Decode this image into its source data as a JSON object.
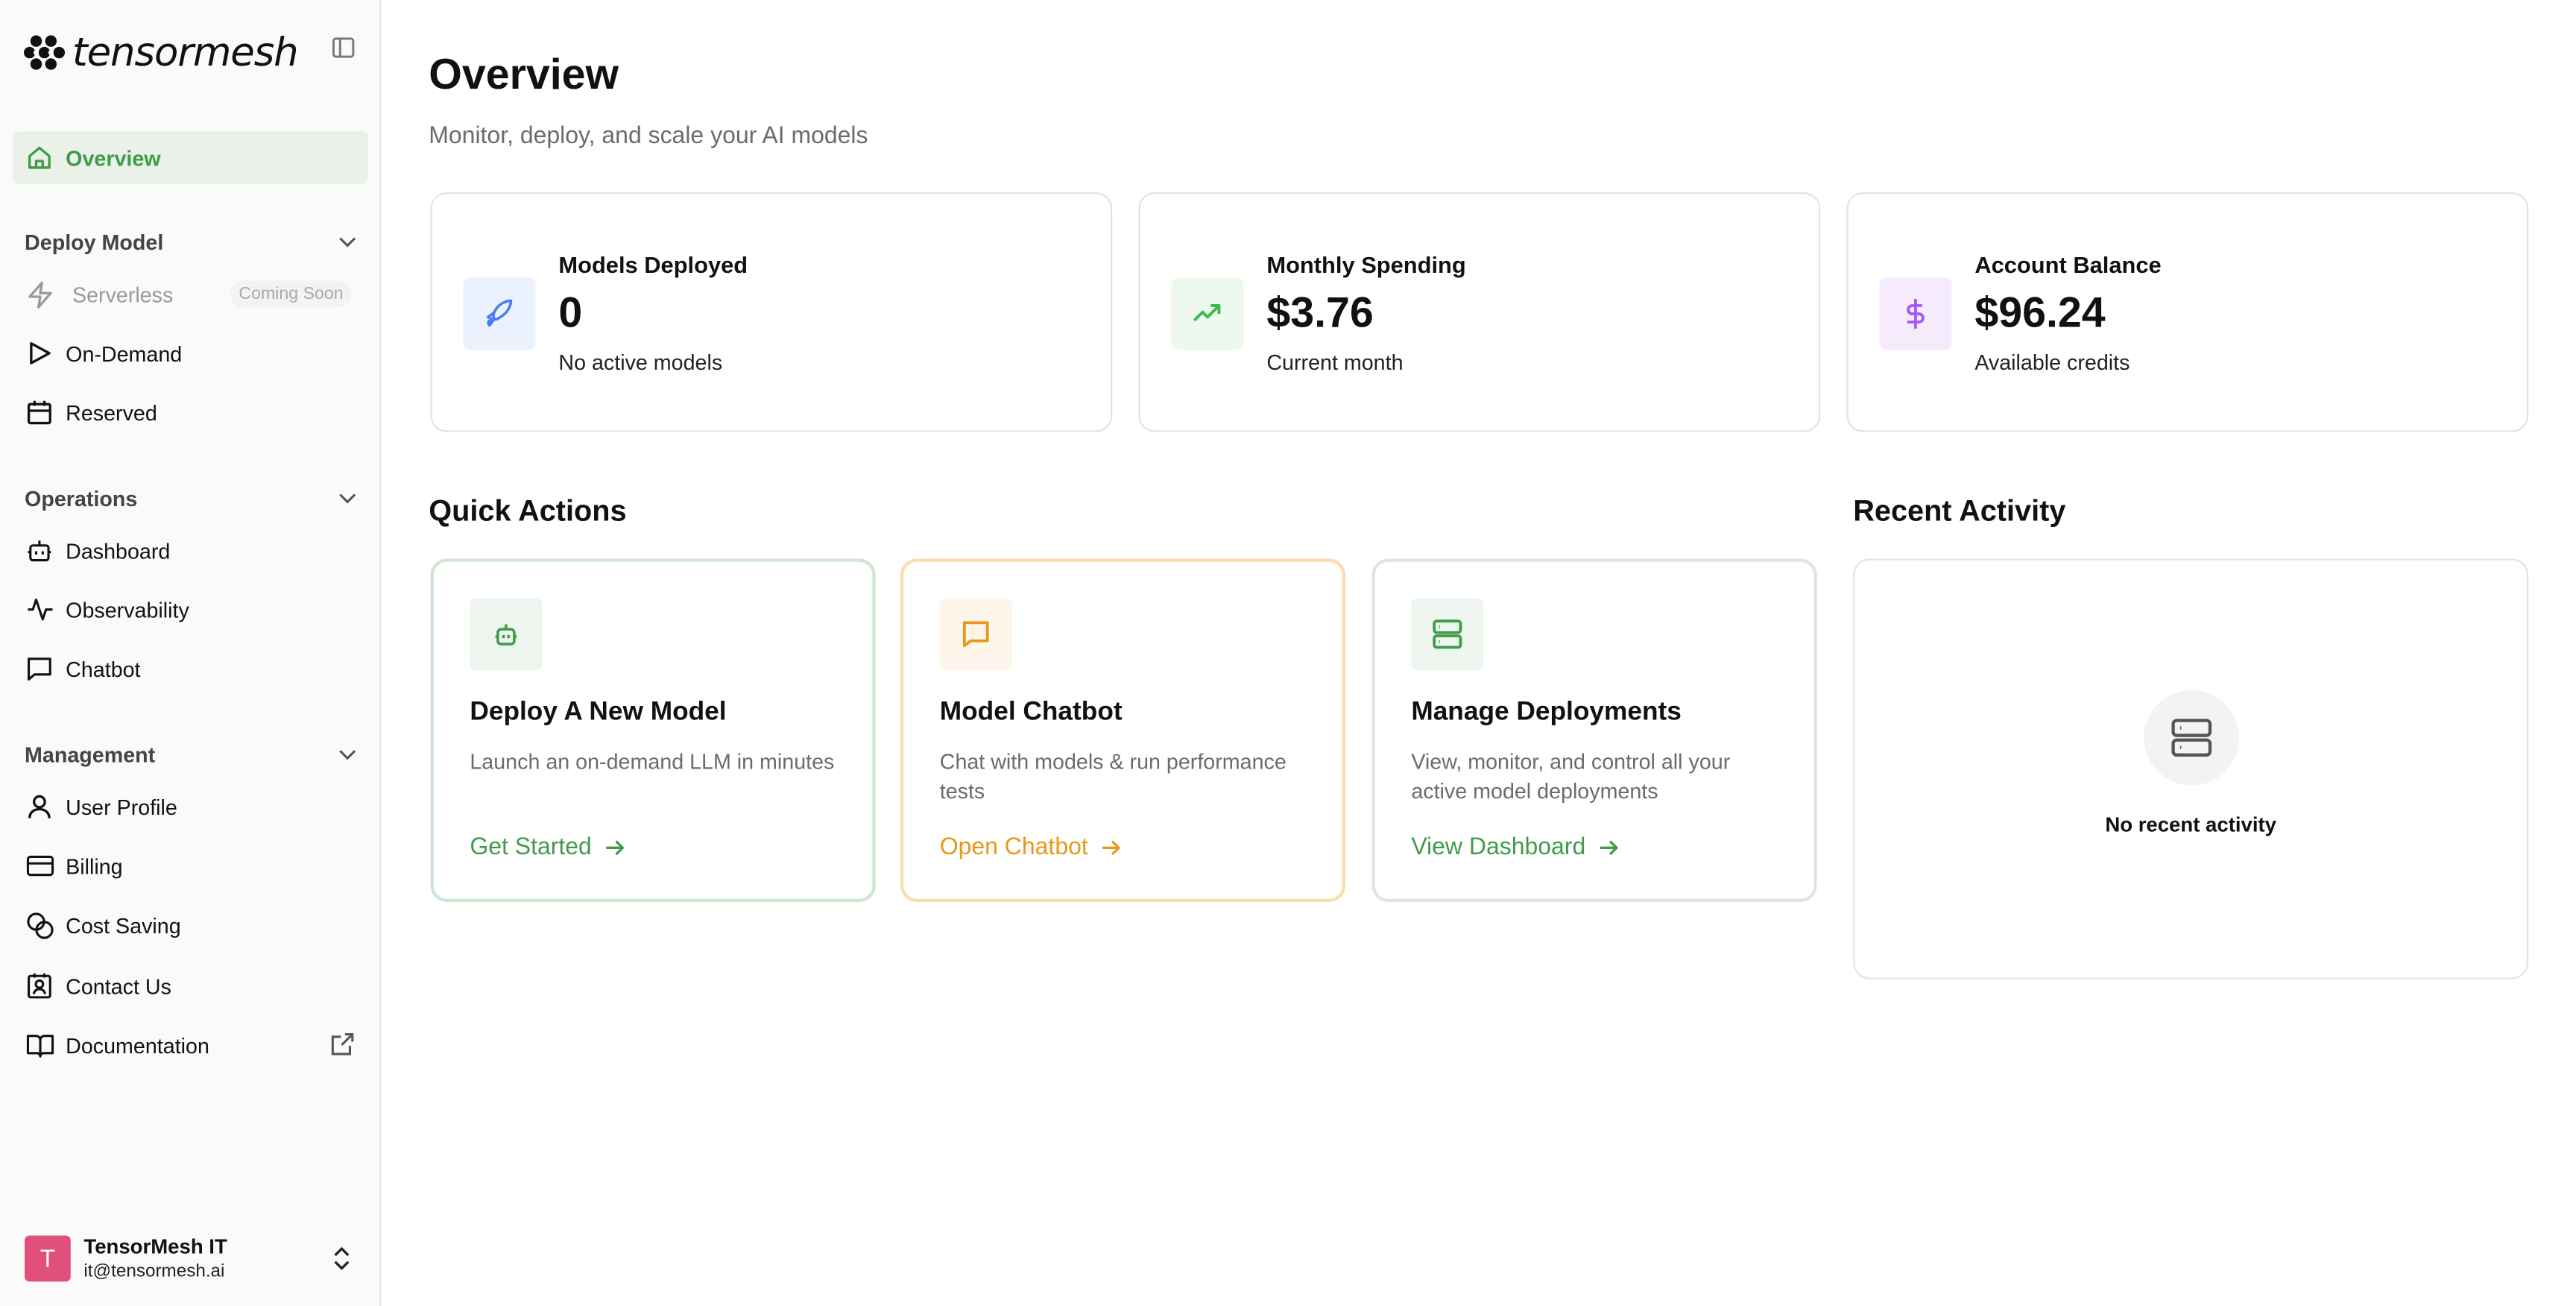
{
  "brand": {
    "name": "tensormesh"
  },
  "sidebar": {
    "overview": "Overview",
    "sections": [
      {
        "title": "Deploy Model",
        "items": [
          {
            "label": "Serverless",
            "badge": "Coming Soon"
          },
          {
            "label": "On-Demand"
          },
          {
            "label": "Reserved"
          }
        ]
      },
      {
        "title": "Operations",
        "items": [
          {
            "label": "Dashboard"
          },
          {
            "label": "Observability"
          },
          {
            "label": "Chatbot"
          }
        ]
      },
      {
        "title": "Management",
        "items": [
          {
            "label": "User Profile"
          },
          {
            "label": "Billing"
          },
          {
            "label": "Cost Saving"
          },
          {
            "label": "Contact Us"
          },
          {
            "label": "Documentation"
          }
        ]
      }
    ],
    "user": {
      "initial": "T",
      "name": "TensorMesh IT",
      "email": "it@tensormesh.ai",
      "avatar_color": "#e0507a"
    }
  },
  "header": {
    "title": "Overview",
    "subtitle": "Monitor, deploy, and scale your AI models"
  },
  "stats": [
    {
      "label": "Models Deployed",
      "value": "0",
      "sub": "No active models",
      "icon": "rocket-icon",
      "color": "#4a7cf0"
    },
    {
      "label": "Monthly Spending",
      "value": "$3.76",
      "sub": "Current month",
      "icon": "trending-up-icon",
      "color": "#3fb950"
    },
    {
      "label": "Account Balance",
      "value": "$96.24",
      "sub": "Available credits",
      "icon": "dollar-icon",
      "color": "#a855f7"
    }
  ],
  "quick_actions": {
    "title": "Quick Actions",
    "cards": [
      {
        "title": "Deploy A New Model",
        "desc": "Launch an on-demand LLM in minutes",
        "link": "Get Started",
        "icon": "bot-icon",
        "color": "#3f9b4a"
      },
      {
        "title": "Model Chatbot",
        "desc": "Chat with models & run performance tests",
        "link": "Open Chatbot",
        "icon": "chat-icon",
        "color": "#e8971a"
      },
      {
        "title": "Manage Deployments",
        "desc": "View, monitor, and control all your active model deployments",
        "link": "View Dashboard",
        "icon": "server-icon",
        "color": "#3f9b4a"
      }
    ]
  },
  "recent": {
    "title": "Recent Activity",
    "empty": "No recent activity"
  }
}
